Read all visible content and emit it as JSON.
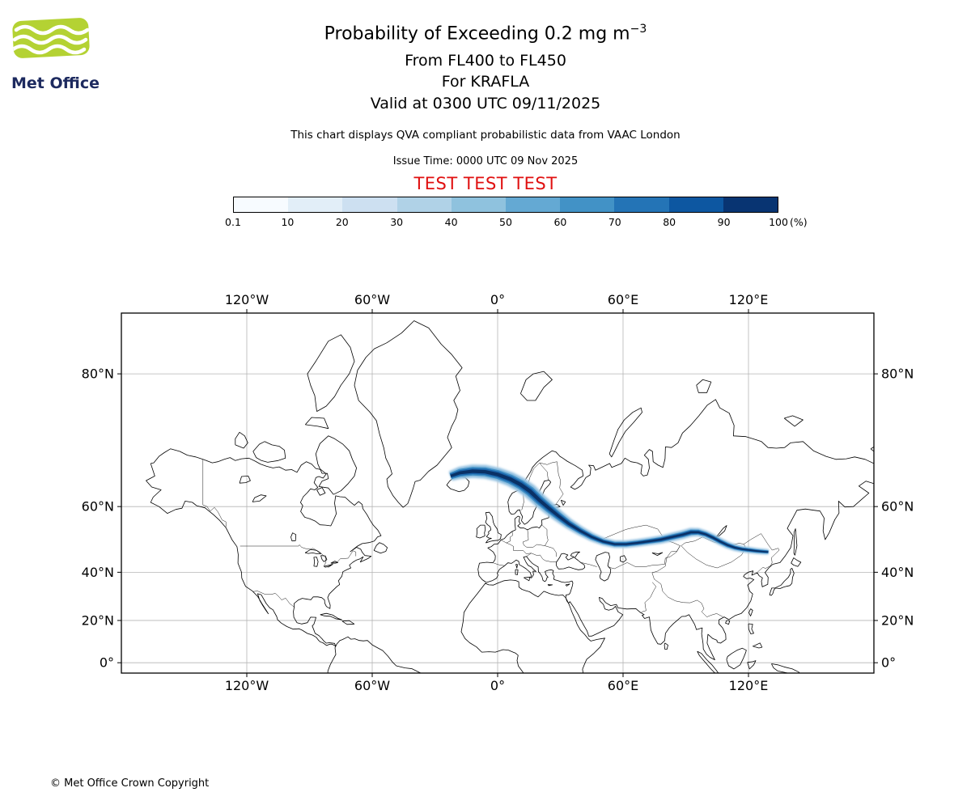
{
  "logo": {
    "text": "Met Office"
  },
  "header": {
    "title": "Probability of Exceeding 0.2 mg m",
    "title_exponent": "−3",
    "flight_levels_line": "From FL400 to FL450",
    "volcano_line": "For KRAFLA",
    "valid_line": "Valid at 0300 UTC 09/11/2025",
    "note": "This chart displays QVA compliant probabilistic data from VAAC London",
    "issue_time": "Issue Time: 0000 UTC 09 Nov 2025",
    "test_banner": "TEST TEST TEST"
  },
  "colors": {
    "test_banner": "#e01010",
    "logo_green": "#b4d233",
    "logo_text": "#1d2a5f",
    "grid": "#b5b5b5",
    "coastline": "#000000"
  },
  "footer": {
    "copyright": "© Met Office Crown Copyright"
  },
  "chart_data": {
    "type": "heatmap",
    "title": "Probability of Exceeding 0.2 mg m−3",
    "subtitle": [
      "From FL400 to FL450",
      "For KRAFLA",
      "Valid at 0300 UTC 09/11/2025"
    ],
    "issue_time": "0000 UTC 09 Nov 2025",
    "valid_time": "0300 UTC 09/11/2025",
    "volcano": "KRAFLA",
    "source": "VAAC London",
    "units": "%",
    "projection": "mercator",
    "extent": {
      "lon_min": -180,
      "lon_max": 180,
      "lat_min": -5,
      "lat_max": 84
    },
    "x_tick_lons": [
      -120,
      -60,
      0,
      60,
      120
    ],
    "x_tick_labels": [
      "120°W",
      "60°W",
      "0°",
      "60°E",
      "120°E"
    ],
    "y_tick_lats": [
      80,
      60,
      40,
      20,
      0
    ],
    "y_tick_labels": [
      "80°N",
      "60°N",
      "40°N",
      "20°N",
      "0°"
    ],
    "grid_on": true,
    "colorbar": {
      "tick_labels": [
        "0.1",
        "10",
        "20",
        "30",
        "40",
        "50",
        "60",
        "70",
        "80",
        "90",
        "100"
      ],
      "unit_label": "(%)",
      "segment_colors": [
        "#f7fbff",
        "#e2eef8",
        "#cde0f1",
        "#b0d2e7",
        "#8fc2de",
        "#64a9d3",
        "#4292c6",
        "#2474b6",
        "#0d57a1",
        "#083472"
      ]
    },
    "plume": {
      "name": "ash-probability-band",
      "description": "Band of non-zero exceedance probability from Iceland across Scandinavia and Russia to NE China; hw = half-width in degrees latitude",
      "points": [
        {
          "lon": -22.5,
          "lat": 66.6,
          "hw": 1.0
        },
        {
          "lon": -18,
          "lat": 67.2,
          "hw": 1.2
        },
        {
          "lon": -12,
          "lat": 67.5,
          "hw": 1.3
        },
        {
          "lon": -6,
          "lat": 67.4,
          "hw": 1.35
        },
        {
          "lon": 0,
          "lat": 66.9,
          "hw": 1.4
        },
        {
          "lon": 6,
          "lat": 66.0,
          "hw": 1.5
        },
        {
          "lon": 11,
          "lat": 64.9,
          "hw": 1.6
        },
        {
          "lon": 15.5,
          "lat": 63.5,
          "hw": 1.7
        },
        {
          "lon": 20,
          "lat": 61.5,
          "hw": 1.7
        },
        {
          "lon": 24.5,
          "lat": 59.6,
          "hw": 1.7
        },
        {
          "lon": 29,
          "lat": 57.7,
          "hw": 1.6
        },
        {
          "lon": 34,
          "lat": 55.6,
          "hw": 1.5
        },
        {
          "lon": 39.5,
          "lat": 53.6,
          "hw": 1.4
        },
        {
          "lon": 45,
          "lat": 51.8,
          "hw": 1.3
        },
        {
          "lon": 50.5,
          "lat": 50.4,
          "hw": 1.2
        },
        {
          "lon": 56,
          "lat": 49.6,
          "hw": 1.2
        },
        {
          "lon": 61.5,
          "lat": 49.6,
          "hw": 1.2
        },
        {
          "lon": 67,
          "lat": 50.0,
          "hw": 1.2
        },
        {
          "lon": 72.5,
          "lat": 50.5,
          "hw": 1.2
        },
        {
          "lon": 78,
          "lat": 51.0,
          "hw": 1.25
        },
        {
          "lon": 83.5,
          "lat": 51.8,
          "hw": 1.3
        },
        {
          "lon": 88.5,
          "lat": 52.5,
          "hw": 1.3
        },
        {
          "lon": 92.5,
          "lat": 53.2,
          "hw": 1.3
        },
        {
          "lon": 96,
          "lat": 53.2,
          "hw": 1.2
        },
        {
          "lon": 99.5,
          "lat": 52.6,
          "hw": 1.1
        },
        {
          "lon": 103,
          "lat": 51.6,
          "hw": 1.1
        },
        {
          "lon": 106.5,
          "lat": 50.4,
          "hw": 1.1
        },
        {
          "lon": 110,
          "lat": 49.3,
          "hw": 1.1
        },
        {
          "lon": 113.5,
          "lat": 48.5,
          "hw": 1.05
        },
        {
          "lon": 117,
          "lat": 48.0,
          "hw": 1.0
        },
        {
          "lon": 120.5,
          "lat": 47.7,
          "hw": 1.0
        },
        {
          "lon": 124,
          "lat": 47.4,
          "hw": 0.95
        },
        {
          "lon": 127.5,
          "lat": 47.2,
          "hw": 0.9
        },
        {
          "lon": 129.5,
          "lat": 47.1,
          "hw": 0.85
        }
      ],
      "band_colors": [
        "#bdd8ec",
        "#7fb5db",
        "#3f8ec4",
        "#1a65ab",
        "#0a3166"
      ]
    }
  }
}
